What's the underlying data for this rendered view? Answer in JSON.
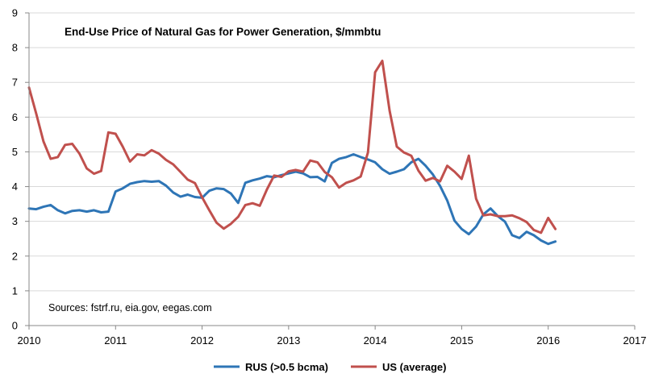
{
  "chart_data": {
    "type": "line",
    "title": "End-Use Price of Natural Gas for Power Generation, $/mmbtu",
    "annotation": "Sources: fstrf.ru, eia.gov, eegas.com",
    "xlim": [
      2010,
      2017
    ],
    "ylim": [
      0,
      9
    ],
    "x_ticks": [
      "2010",
      "2011",
      "2012",
      "2013",
      "2014",
      "2015",
      "2016",
      "2017"
    ],
    "y_ticks": [
      "0",
      "1",
      "2",
      "3",
      "4",
      "5",
      "6",
      "7",
      "8",
      "9"
    ],
    "grid": "horizontal",
    "legend_position": "bottom",
    "series": [
      {
        "name": "RUS  (>0.5 bcma)",
        "color": "#2E75B6",
        "x": [
          2010.0,
          2010.083,
          2010.167,
          2010.25,
          2010.333,
          2010.417,
          2010.5,
          2010.583,
          2010.667,
          2010.75,
          2010.833,
          2010.917,
          2011.0,
          2011.083,
          2011.167,
          2011.25,
          2011.333,
          2011.417,
          2011.5,
          2011.583,
          2011.667,
          2011.75,
          2011.833,
          2011.917,
          2012.0,
          2012.083,
          2012.167,
          2012.25,
          2012.333,
          2012.417,
          2012.5,
          2012.583,
          2012.667,
          2012.75,
          2012.833,
          2012.917,
          2013.0,
          2013.083,
          2013.167,
          2013.25,
          2013.333,
          2013.417,
          2013.5,
          2013.583,
          2013.667,
          2013.75,
          2013.833,
          2013.917,
          2014.0,
          2014.083,
          2014.167,
          2014.25,
          2014.333,
          2014.417,
          2014.5,
          2014.583,
          2014.667,
          2014.75,
          2014.833,
          2014.917,
          2015.0,
          2015.083,
          2015.167,
          2015.25,
          2015.333,
          2015.417,
          2015.5,
          2015.583,
          2015.667,
          2015.75,
          2015.833,
          2015.917,
          2016.0,
          2016.083
        ],
        "y": [
          3.37,
          3.35,
          3.42,
          3.47,
          3.32,
          3.23,
          3.3,
          3.32,
          3.28,
          3.32,
          3.26,
          3.28,
          3.86,
          3.95,
          4.08,
          4.13,
          4.16,
          4.14,
          4.16,
          4.03,
          3.83,
          3.71,
          3.77,
          3.7,
          3.68,
          3.88,
          3.95,
          3.93,
          3.8,
          3.53,
          4.11,
          4.18,
          4.23,
          4.3,
          4.27,
          4.33,
          4.38,
          4.43,
          4.38,
          4.27,
          4.28,
          4.15,
          4.68,
          4.8,
          4.85,
          4.93,
          4.85,
          4.78,
          4.7,
          4.5,
          4.37,
          4.43,
          4.5,
          4.7,
          4.8,
          4.6,
          4.35,
          4.02,
          3.6,
          3.02,
          2.78,
          2.63,
          2.85,
          3.2,
          3.37,
          3.15,
          2.99,
          2.6,
          2.52,
          2.7,
          2.6,
          2.45,
          2.35,
          2.42
        ]
      },
      {
        "name": "US  (average)",
        "color": "#C0504D",
        "x": [
          2010.0,
          2010.083,
          2010.167,
          2010.25,
          2010.333,
          2010.417,
          2010.5,
          2010.583,
          2010.667,
          2010.75,
          2010.833,
          2010.917,
          2011.0,
          2011.083,
          2011.167,
          2011.25,
          2011.333,
          2011.417,
          2011.5,
          2011.583,
          2011.667,
          2011.75,
          2011.833,
          2011.917,
          2012.0,
          2012.083,
          2012.167,
          2012.25,
          2012.333,
          2012.417,
          2012.5,
          2012.583,
          2012.667,
          2012.75,
          2012.833,
          2012.917,
          2013.0,
          2013.083,
          2013.167,
          2013.25,
          2013.333,
          2013.417,
          2013.5,
          2013.583,
          2013.667,
          2013.75,
          2013.833,
          2013.917,
          2014.0,
          2014.083,
          2014.167,
          2014.25,
          2014.333,
          2014.417,
          2014.5,
          2014.583,
          2014.667,
          2014.75,
          2014.833,
          2014.917,
          2015.0,
          2015.083,
          2015.167,
          2015.25,
          2015.333,
          2015.417,
          2015.5,
          2015.583,
          2015.667,
          2015.75,
          2015.833,
          2015.917,
          2016.0,
          2016.083
        ],
        "y": [
          6.85,
          6.1,
          5.3,
          4.8,
          4.85,
          5.2,
          5.23,
          4.95,
          4.52,
          4.37,
          4.45,
          5.56,
          5.52,
          5.15,
          4.72,
          4.93,
          4.9,
          5.05,
          4.95,
          4.77,
          4.64,
          4.42,
          4.2,
          4.1,
          3.69,
          3.32,
          2.96,
          2.79,
          2.93,
          3.13,
          3.47,
          3.52,
          3.45,
          3.92,
          4.32,
          4.28,
          4.44,
          4.48,
          4.43,
          4.75,
          4.7,
          4.42,
          4.27,
          3.97,
          4.11,
          4.18,
          4.29,
          4.98,
          7.29,
          7.62,
          6.18,
          5.15,
          4.98,
          4.89,
          4.46,
          4.17,
          4.25,
          4.15,
          4.6,
          4.43,
          4.22,
          4.89,
          3.65,
          3.17,
          3.2,
          3.15,
          3.15,
          3.17,
          3.09,
          2.98,
          2.75,
          2.67,
          3.1,
          2.78
        ]
      }
    ]
  }
}
